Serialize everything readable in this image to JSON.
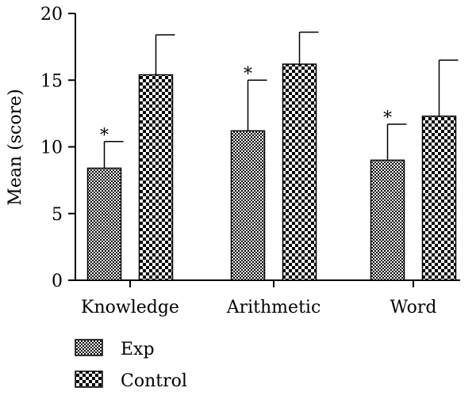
{
  "chart_data": {
    "type": "bar",
    "title": "",
    "xlabel": "",
    "ylabel": "Mean (score)",
    "ylim": [
      0,
      20
    ],
    "yticks": [
      "0",
      "5",
      "10",
      "15",
      "20"
    ],
    "categories": [
      "Knowledge",
      "Arithmetic",
      "Word"
    ],
    "series": [
      {
        "name": "Exp",
        "values": [
          8.4,
          11.2,
          9.0
        ],
        "error": [
          2.0,
          3.8,
          2.7
        ],
        "annotations": [
          "*",
          "*",
          "*"
        ],
        "pattern": "fine-check"
      },
      {
        "name": "Control",
        "values": [
          15.4,
          16.2,
          12.3
        ],
        "error": [
          3.0,
          2.4,
          4.2
        ],
        "annotations": [
          "",
          "",
          ""
        ],
        "pattern": "coarse-check"
      }
    ],
    "grid": false,
    "legend_position": "bottom-left",
    "colors": {
      "ink": "#000000",
      "paper": "#ffffff"
    }
  }
}
